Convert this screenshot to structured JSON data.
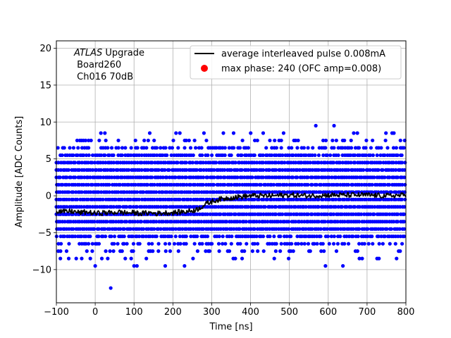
{
  "chart_data": {
    "type": "scatter",
    "xlabel": "Time [ns]",
    "ylabel": "Amplitude [ADC Counts]",
    "xlim": [
      -100,
      800
    ],
    "ylim": [
      -14.5,
      21
    ],
    "xticks": [
      -100,
      0,
      100,
      200,
      300,
      400,
      500,
      600,
      700,
      800
    ],
    "yticks": [
      -10,
      -5,
      0,
      5,
      10,
      15,
      20
    ],
    "xtick_labels": [
      "−100",
      "0",
      "100",
      "200",
      "300",
      "400",
      "500",
      "600",
      "700",
      "800"
    ],
    "ytick_labels": [
      "−10",
      "−5",
      "0",
      "5",
      "10",
      "15",
      "20"
    ],
    "grid": true,
    "legend_position": "top-right",
    "annotation": {
      "line1_italic": "ATLAS",
      "line1_rest": " Upgrade",
      "line2": " Board260",
      "line3": " Ch016 70dB"
    },
    "series": [
      {
        "name": "average interleaved pulse 0.008mA",
        "kind": "line",
        "color": "#000000",
        "x": [
          -100,
          -80,
          -60,
          -40,
          -20,
          0,
          20,
          40,
          60,
          80,
          100,
          120,
          140,
          160,
          180,
          200,
          220,
          240,
          260,
          270,
          280,
          290,
          300,
          310,
          320,
          340,
          360,
          380,
          400,
          450,
          500,
          550,
          600,
          650,
          700,
          750,
          800
        ],
        "y": [
          -2.0,
          -2.2,
          -2.1,
          -2.3,
          -2.2,
          -2.4,
          -2.3,
          -2.3,
          -2.2,
          -2.3,
          -2.3,
          -2.4,
          -2.3,
          -2.4,
          -2.3,
          -2.3,
          -2.2,
          -2.1,
          -1.9,
          -1.6,
          -1.3,
          -1.0,
          -0.8,
          -0.6,
          -0.5,
          -0.3,
          -0.2,
          -0.1,
          0.0,
          0.0,
          0.1,
          0.0,
          0.1,
          0.1,
          0.1,
          0.0,
          0.1
        ]
      },
      {
        "name": "max phase: 240 (OFC amp=0.008)",
        "kind": "marker",
        "color": "#ff0000",
        "x": [],
        "y": []
      },
      {
        "name": "",
        "kind": "scatter",
        "color": "#0000ff",
        "description_levels": [
          -9.5,
          -8.5,
          -7.5,
          -6.5,
          -5.5,
          -4.5,
          -3.5,
          -2.5,
          -1.5,
          -0.5,
          0.5,
          1.5,
          2.5,
          3.5,
          4.5,
          5.5,
          6.5,
          7.5,
          8.5
        ],
        "level_weights": [
          0.04,
          0.1,
          0.3,
          0.5,
          0.85,
          1,
          1,
          1,
          1,
          1,
          1,
          1,
          1,
          1,
          1,
          0.85,
          0.55,
          0.22,
          0.06
        ],
        "x_step": 5.5,
        "outliers": [
          {
            "x": 40,
            "y": -12.5
          },
          {
            "x": 568,
            "y": 9.5
          },
          {
            "x": 615,
            "y": 9.5
          },
          {
            "x": 675,
            "y": 8.5
          },
          {
            "x": 485,
            "y": 8.5
          },
          {
            "x": 280,
            "y": 8.5
          },
          {
            "x": 330,
            "y": 8.5
          },
          {
            "x": -35,
            "y": 7.5
          },
          {
            "x": 100,
            "y": -9.5
          },
          {
            "x": 0,
            "y": -9.5
          },
          {
            "x": 230,
            "y": -9.5
          }
        ]
      }
    ]
  }
}
